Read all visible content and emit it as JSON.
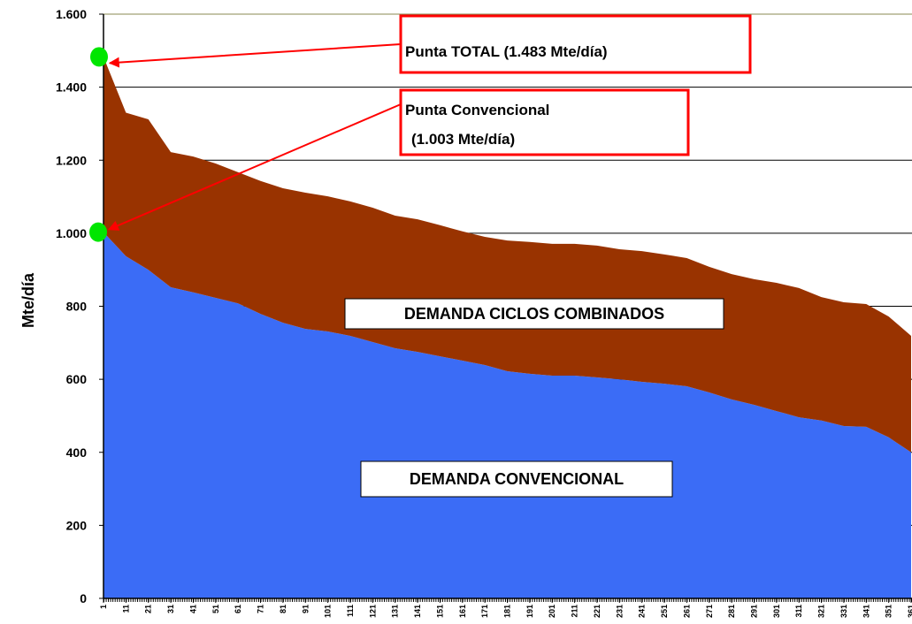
{
  "chart_data": {
    "type": "stacked-area",
    "y_label": "Mte/día",
    "x": [
      1,
      11,
      21,
      31,
      41,
      51,
      61,
      71,
      81,
      91,
      101,
      111,
      121,
      131,
      141,
      151,
      161,
      171,
      181,
      191,
      201,
      211,
      221,
      231,
      241,
      251,
      261,
      271,
      281,
      291,
      301,
      311,
      321,
      331,
      341,
      351,
      361
    ],
    "series": [
      {
        "name": "DEMANDA CONVENCIONAL",
        "color": "#3b6cf6",
        "values": [
          1003,
          937,
          900,
          852,
          838,
          823,
          808,
          779,
          755,
          738,
          731,
          719,
          702,
          685,
          675,
          663,
          651,
          639,
          622,
          615,
          610,
          610,
          605,
          600,
          593,
          588,
          581,
          564,
          545,
          530,
          513,
          496,
          487,
          472,
          470,
          441,
          400
        ]
      },
      {
        "name": "DEMANDA CICLOS COMBINADOS",
        "color": "#993300",
        "values": [
          480,
          393,
          412,
          370,
          372,
          368,
          359,
          364,
          368,
          373,
          370,
          368,
          368,
          363,
          363,
          359,
          354,
          351,
          358,
          361,
          361,
          361,
          361,
          356,
          358,
          354,
          351,
          344,
          343,
          344,
          351,
          354,
          338,
          339,
          336,
          331,
          319
        ]
      }
    ],
    "xlim": [
      1,
      361
    ],
    "xticks": [
      1,
      11,
      21,
      31,
      41,
      51,
      61,
      71,
      81,
      91,
      101,
      111,
      121,
      131,
      141,
      151,
      161,
      171,
      181,
      191,
      201,
      211,
      221,
      231,
      241,
      251,
      261,
      271,
      281,
      291,
      301,
      311,
      321,
      331,
      341,
      351,
      361
    ],
    "ylim": [
      0,
      1600
    ],
    "yticks": [
      0,
      200,
      400,
      600,
      800,
      {
        "value": 1000,
        "label": "1.000"
      },
      {
        "value": 1200,
        "label": "1.200"
      },
      {
        "value": 1400,
        "label": "1.400"
      },
      {
        "value": 1600,
        "label": "1.600"
      }
    ],
    "grid": true,
    "annotations": [
      {
        "lines": [
          "Punta TOTAL (1.483 Mte/día)"
        ]
      },
      {
        "lines": [
          "Punta Convencional",
          "(1.003 Mte/día)"
        ]
      }
    ]
  }
}
